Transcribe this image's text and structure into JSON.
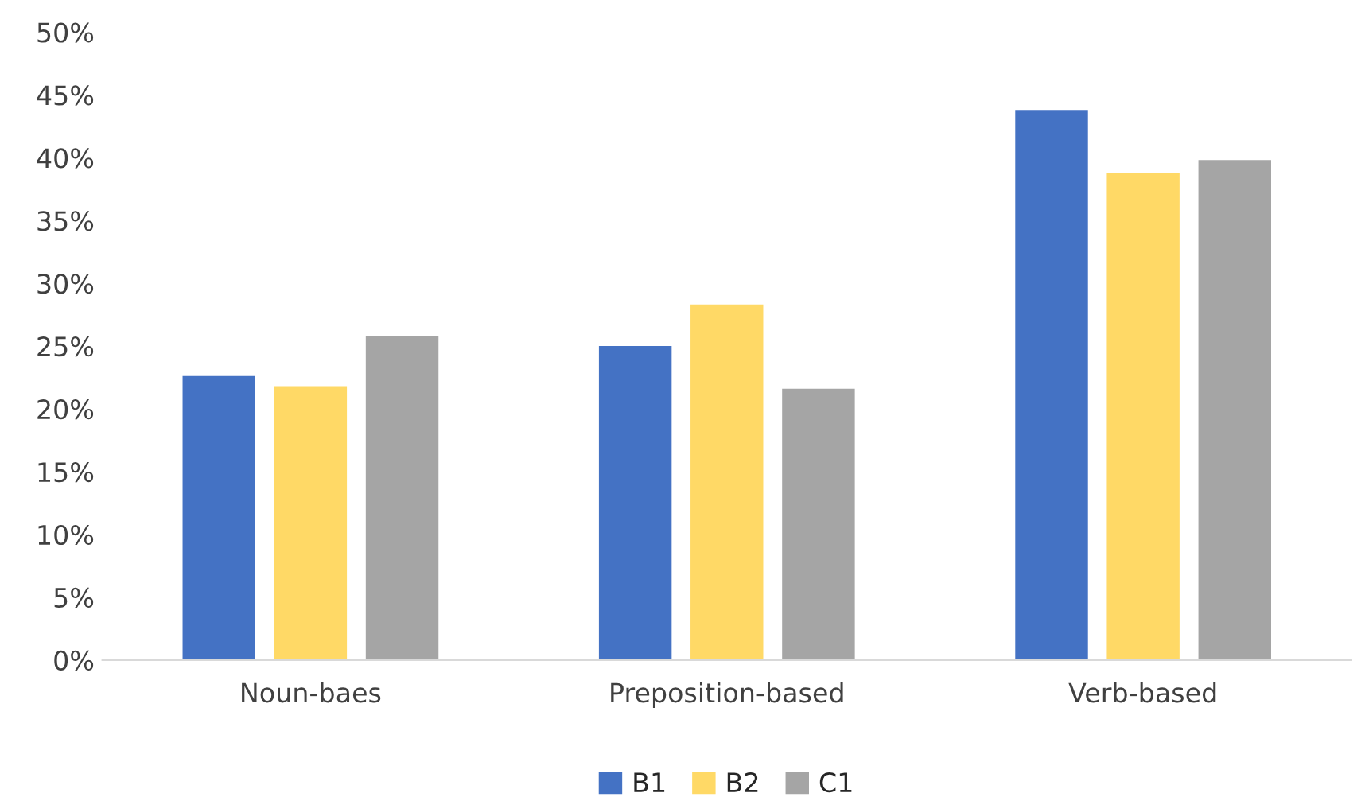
{
  "chart_data": {
    "type": "bar",
    "categories": [
      "Noun-baes",
      "Preposition-based",
      "Verb-based"
    ],
    "series": [
      {
        "name": "B1",
        "color": "#4472c4",
        "values": [
          22.7,
          25.1,
          43.9
        ]
      },
      {
        "name": "B2",
        "color": "#ffd966",
        "values": [
          21.9,
          28.4,
          38.9
        ]
      },
      {
        "name": "C1",
        "color": "#a5a5a5",
        "values": [
          25.9,
          21.7,
          39.9
        ]
      }
    ],
    "ylim": [
      0,
      50
    ],
    "yticks": [
      {
        "value": 0,
        "label": "0%"
      },
      {
        "value": 5,
        "label": "5%"
      },
      {
        "value": 10,
        "label": "10%"
      },
      {
        "value": 15,
        "label": "15%"
      },
      {
        "value": 20,
        "label": "20%"
      },
      {
        "value": 25,
        "label": "25%"
      },
      {
        "value": 30,
        "label": "30%"
      },
      {
        "value": 35,
        "label": "35%"
      },
      {
        "value": 40,
        "label": "40%"
      },
      {
        "value": 45,
        "label": "45%"
      },
      {
        "value": 50,
        "label": "50%"
      }
    ],
    "grid": false,
    "legend": "bottom"
  }
}
